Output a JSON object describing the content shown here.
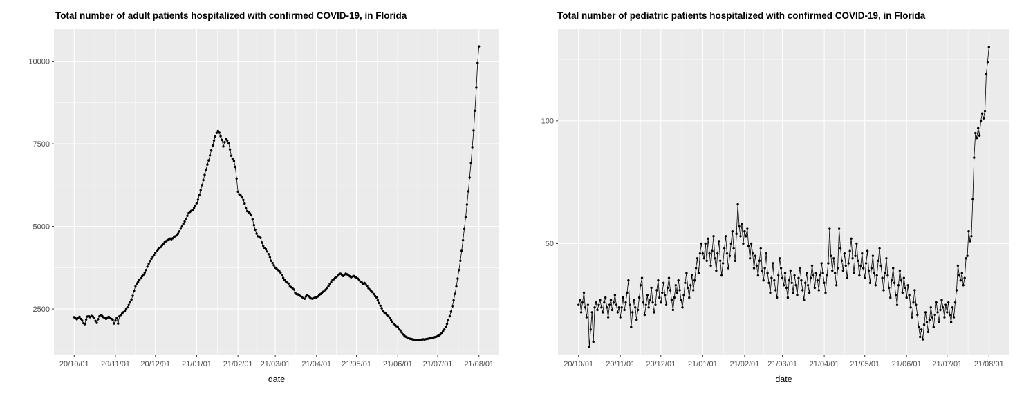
{
  "page": {
    "background": "#FFFFFF",
    "figure_count": 2,
    "x_unit": "daily observations, day index 0 = 20/10/01"
  },
  "chart_data": [
    {
      "type": "line",
      "title": "Total number of adult patients hospitalized with confirmed COVID-19, in Florida",
      "xlabel": "date",
      "ylabel": "",
      "legend": "none",
      "grid": "on",
      "x_tick_labels": [
        "20/10/01",
        "20/11/01",
        "20/12/01",
        "21/01/01",
        "21/02/01",
        "21/03/01",
        "21/04/01",
        "21/05/01",
        "21/06/01",
        "21/07/01",
        "21/08/01"
      ],
      "x_tick_days": [
        0,
        31,
        61,
        92,
        123,
        151,
        182,
        212,
        243,
        273,
        304
      ],
      "y_ticks": [
        2500,
        5000,
        7500,
        10000
      ],
      "y_tick_labels": [
        "2500",
        "5000",
        "7500",
        "10000"
      ],
      "y_minor_ticks": [
        1250,
        3750,
        6250,
        8750
      ],
      "ylim": [
        1120,
        10976
      ],
      "xlim_days": [
        -15.2,
        319.2
      ],
      "colors": {
        "panel_bg": "#EBEBEB",
        "grid": "#FFFFFF",
        "series": "#000000",
        "tick": "#333333",
        "axis_text": "#4D4D4D"
      },
      "values": [
        2250,
        2220,
        2190,
        2230,
        2260,
        2200,
        2150,
        2070,
        2040,
        2180,
        2270,
        2280,
        2250,
        2290,
        2270,
        2230,
        2140,
        2080,
        2190,
        2280,
        2320,
        2290,
        2250,
        2230,
        2200,
        2240,
        2260,
        2230,
        2200,
        2170,
        2060,
        2150,
        2230,
        2060,
        2280,
        2320,
        2360,
        2400,
        2440,
        2490,
        2550,
        2620,
        2700,
        2780,
        2900,
        3050,
        3180,
        3270,
        3320,
        3380,
        3430,
        3490,
        3540,
        3600,
        3680,
        3780,
        3870,
        3950,
        4020,
        4080,
        4130,
        4200,
        4250,
        4300,
        4340,
        4380,
        4430,
        4470,
        4520,
        4550,
        4580,
        4600,
        4630,
        4610,
        4640,
        4670,
        4700,
        4730,
        4780,
        4850,
        4930,
        5000,
        5080,
        5150,
        5230,
        5320,
        5400,
        5440,
        5470,
        5500,
        5560,
        5630,
        5700,
        5810,
        5950,
        6090,
        6250,
        6400,
        6560,
        6720,
        6870,
        7000,
        7150,
        7300,
        7450,
        7600,
        7720,
        7830,
        7890,
        7840,
        7730,
        7620,
        7420,
        7550,
        7640,
        7600,
        7520,
        7330,
        7140,
        7050,
        6980,
        6800,
        6450,
        6050,
        5970,
        5940,
        5880,
        5800,
        5690,
        5550,
        5460,
        5420,
        5390,
        5350,
        5210,
        5040,
        4900,
        4780,
        4700,
        4690,
        4650,
        4510,
        4410,
        4340,
        4310,
        4240,
        4160,
        4060,
        3960,
        3890,
        3820,
        3750,
        3720,
        3680,
        3650,
        3600,
        3520,
        3440,
        3380,
        3330,
        3300,
        3270,
        3180,
        3160,
        3130,
        3090,
        2990,
        2950,
        2940,
        2920,
        2890,
        2860,
        2830,
        2810,
        2880,
        2920,
        2890,
        2850,
        2820,
        2810,
        2830,
        2850,
        2850,
        2880,
        2920,
        2950,
        2990,
        3020,
        3060,
        3090,
        3140,
        3190,
        3260,
        3310,
        3370,
        3400,
        3440,
        3470,
        3510,
        3550,
        3570,
        3540,
        3500,
        3540,
        3570,
        3550,
        3520,
        3490,
        3460,
        3480,
        3500,
        3470,
        3450,
        3420,
        3380,
        3330,
        3300,
        3260,
        3290,
        3240,
        3190,
        3130,
        3090,
        3050,
        3010,
        2950,
        2890,
        2850,
        2760,
        2680,
        2600,
        2520,
        2440,
        2390,
        2360,
        2320,
        2280,
        2230,
        2160,
        2100,
        2050,
        2010,
        1980,
        1950,
        1900,
        1850,
        1790,
        1730,
        1690,
        1660,
        1640,
        1620,
        1600,
        1590,
        1580,
        1570,
        1560,
        1555,
        1560,
        1555,
        1560,
        1570,
        1580,
        1575,
        1585,
        1590,
        1600,
        1610,
        1620,
        1630,
        1640,
        1650,
        1660,
        1680,
        1700,
        1730,
        1770,
        1820,
        1880,
        1960,
        2050,
        2160,
        2280,
        2420,
        2580,
        2760,
        2960,
        3180,
        3420,
        3680,
        3960,
        4260,
        4580,
        4920,
        5280,
        5660,
        6060,
        6480,
        6920,
        7400,
        7900,
        8500,
        9200,
        9950,
        10450
      ]
    },
    {
      "type": "line",
      "title": "Total number of pediatric patients hospitalized with confirmed COVID-19, in Florida",
      "xlabel": "date",
      "ylabel": "",
      "legend": "none",
      "grid": "on",
      "x_tick_labels": [
        "20/10/01",
        "20/11/01",
        "20/12/01",
        "21/01/01",
        "21/02/01",
        "21/03/01",
        "21/04/01",
        "21/05/01",
        "21/06/01",
        "21/07/01",
        "21/08/01"
      ],
      "x_tick_days": [
        0,
        31,
        61,
        92,
        123,
        151,
        182,
        212,
        243,
        273,
        304
      ],
      "y_ticks": [
        50,
        100
      ],
      "y_tick_labels": [
        "50",
        "100"
      ],
      "y_minor_ticks": [
        25,
        75,
        125
      ],
      "ylim": [
        4.8,
        137.4
      ],
      "xlim_days": [
        -15.2,
        319.2
      ],
      "colors": {
        "panel_bg": "#EBEBEB",
        "grid": "#FFFFFF",
        "series": "#000000",
        "tick": "#333333",
        "axis_text": "#4D4D4D"
      },
      "values": [
        25,
        27,
        22,
        26,
        30,
        24,
        20,
        25,
        8,
        15,
        22,
        10,
        24,
        26,
        23,
        25,
        27,
        24,
        22,
        26,
        28,
        24,
        20,
        25,
        27,
        23,
        26,
        29,
        25,
        22,
        24,
        20,
        24,
        28,
        23,
        26,
        30,
        35,
        25,
        16,
        22,
        27,
        24,
        19,
        23,
        28,
        33,
        36,
        26,
        21,
        25,
        29,
        24,
        27,
        32,
        26,
        22,
        25,
        31,
        35,
        28,
        26,
        30,
        34,
        29,
        25,
        32,
        36,
        31,
        27,
        23,
        28,
        33,
        30,
        35,
        31,
        27,
        24,
        29,
        34,
        38,
        32,
        28,
        33,
        37,
        31,
        35,
        40,
        44,
        38,
        46,
        50,
        46,
        44,
        50,
        43,
        52,
        46,
        41,
        47,
        53,
        44,
        39,
        46,
        51,
        43,
        37,
        42,
        48,
        53,
        46,
        40,
        45,
        50,
        55,
        48,
        43,
        54,
        66,
        57,
        53,
        58,
        50,
        55,
        53,
        56,
        49,
        44,
        50,
        46,
        40,
        45,
        41,
        37,
        43,
        48,
        39,
        35,
        40,
        46,
        38,
        34,
        30,
        36,
        42,
        35,
        31,
        28,
        37,
        44,
        40,
        36,
        33,
        38,
        32,
        28,
        35,
        39,
        34,
        30,
        37,
        33,
        29,
        36,
        40,
        35,
        31,
        27,
        34,
        38,
        33,
        30,
        36,
        41,
        37,
        32,
        38,
        35,
        31,
        37,
        42,
        38,
        34,
        30,
        37,
        42,
        56,
        45,
        39,
        44,
        38,
        33,
        40,
        56,
        48,
        43,
        39,
        46,
        41,
        36,
        42,
        47,
        52,
        44,
        38,
        45,
        50,
        43,
        37,
        41,
        46,
        40,
        36,
        42,
        47,
        39,
        34,
        40,
        45,
        38,
        33,
        37,
        43,
        48,
        41,
        36,
        31,
        38,
        44,
        37,
        32,
        28,
        35,
        40,
        34,
        29,
        25,
        33,
        39,
        35,
        30,
        36,
        32,
        28,
        33,
        29,
        24,
        20,
        26,
        31,
        25,
        21,
        16,
        12,
        15,
        11,
        17,
        22,
        18,
        14,
        19,
        24,
        20,
        16,
        21,
        26,
        22,
        18,
        23,
        27,
        24,
        20,
        25,
        22,
        26,
        21,
        18,
        24,
        20,
        26,
        31,
        41,
        37,
        35,
        38,
        33,
        36,
        44,
        45,
        55,
        51,
        53,
        68,
        85,
        95,
        93,
        97,
        94,
        100,
        103,
        101,
        104,
        119,
        124,
        130
      ]
    }
  ]
}
